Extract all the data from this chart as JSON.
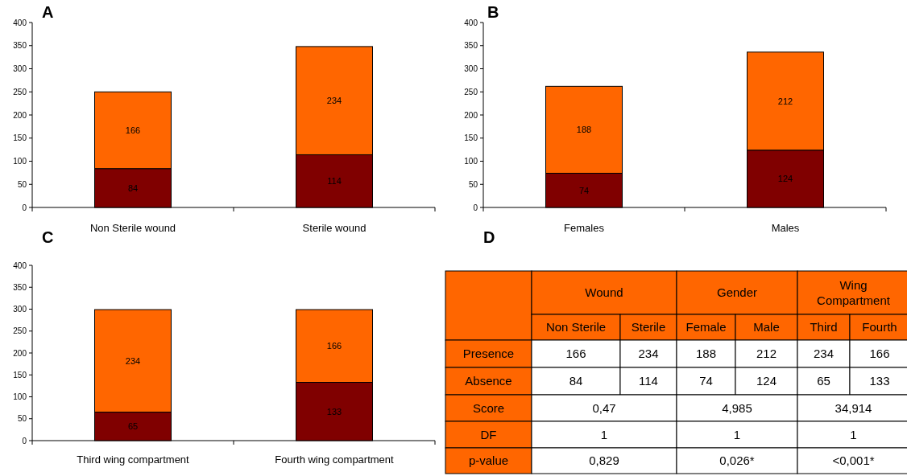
{
  "chart_data": [
    {
      "type": "bar",
      "title": "A",
      "categories": [
        "Non Sterile wound",
        "Sterile wound"
      ],
      "stacked": true,
      "data_labels": true,
      "ylim": [
        0,
        400
      ],
      "yticks": [
        0,
        50,
        100,
        150,
        200,
        250,
        300,
        350,
        400
      ],
      "grid": false,
      "series": [
        {
          "color": "#800000",
          "values": [
            84,
            114
          ]
        },
        {
          "color": "#ff6600",
          "values": [
            166,
            234
          ]
        }
      ]
    },
    {
      "type": "bar",
      "title": "B",
      "categories": [
        "Females",
        "Males"
      ],
      "stacked": true,
      "data_labels": true,
      "ylim": [
        0,
        400
      ],
      "yticks": [
        0,
        50,
        100,
        150,
        200,
        250,
        300,
        350,
        400
      ],
      "grid": false,
      "series": [
        {
          "color": "#800000",
          "values": [
            74,
            124
          ]
        },
        {
          "color": "#ff6600",
          "values": [
            188,
            212
          ]
        }
      ]
    },
    {
      "type": "bar",
      "title": "C",
      "categories": [
        "Third wing compartment",
        "Fourth wing compartment"
      ],
      "stacked": true,
      "data_labels": true,
      "ylim": [
        0,
        400
      ],
      "yticks": [
        0,
        50,
        100,
        150,
        200,
        250,
        300,
        350,
        400
      ],
      "grid": false,
      "series": [
        {
          "color": "#800000",
          "values": [
            65,
            133
          ]
        },
        {
          "color": "#ff6600",
          "values": [
            234,
            166
          ]
        }
      ]
    },
    {
      "type": "other",
      "title": "D",
      "annotations": [
        "Wound",
        "Gender",
        "Wing Compartment",
        "Non Sterile",
        "Sterile",
        "Female",
        "Male",
        "Third",
        "Fourth",
        "Presence",
        "166",
        "234",
        "188",
        "212",
        "234",
        "166",
        "Absence",
        "84",
        "114",
        "74",
        "124",
        "65",
        "133",
        "Score",
        "0,47",
        "4,985",
        "34,914",
        "DF",
        "1",
        "1",
        "1",
        "p-value",
        "0,829",
        "0,026*",
        "<0,001*"
      ]
    }
  ]
}
